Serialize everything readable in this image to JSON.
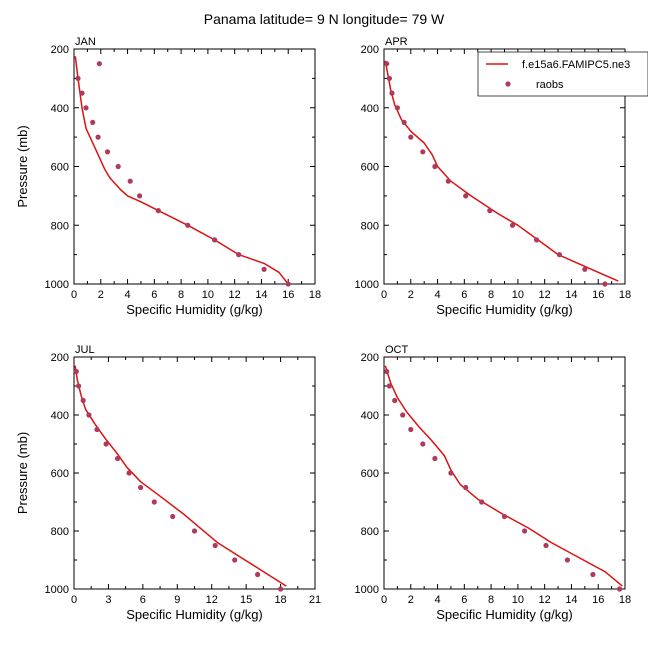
{
  "title": "Panama  latitude= 9 N longitude= 79 W",
  "colors": {
    "model": "#dd1111",
    "obs": "#b03a5b"
  },
  "legend": {
    "placement": "top-right",
    "model_label": "f.e15a6.FAMIPC5.ne3",
    "obs_label": "raobs"
  },
  "chart_data": [
    {
      "type": "line",
      "title": "JAN",
      "xlabel": "Specific Humidity (g/kg)",
      "ylabel": "Pressure (mb)",
      "xlim": [
        0,
        18
      ],
      "ylim": [
        1000,
        200
      ],
      "xticks": [
        "0",
        "2",
        "4",
        "6",
        "8",
        "10",
        "12",
        "14",
        "16",
        "18"
      ],
      "yticks": [
        "200",
        "400",
        "600",
        "800",
        "1000"
      ],
      "y_axis_reversed": true,
      "grid": false,
      "series": [
        {
          "name": "f.e15a6.FAMIPC5.ne3",
          "kind": "line",
          "x": [
            0.1,
            0.3,
            0.6,
            0.9,
            1.7,
            2.3,
            2.7,
            3.5,
            4.0,
            5.0,
            6.3,
            8.5,
            10.5,
            12.3,
            14.2,
            15.3,
            16.0
          ],
          "y": [
            225,
            300,
            400,
            470,
            550,
            610,
            640,
            680,
            700,
            720,
            750,
            800,
            850,
            900,
            930,
            960,
            1000
          ]
        },
        {
          "name": "raobs",
          "kind": "scatter",
          "x": [
            1.9,
            0.3,
            0.6,
            0.9,
            1.4,
            1.8,
            2.5,
            3.3,
            4.2,
            4.9,
            6.3,
            8.5,
            10.5,
            12.3,
            14.2,
            16.0
          ],
          "y": [
            250,
            300,
            350,
            400,
            450,
            500,
            550,
            600,
            650,
            700,
            750,
            800,
            850,
            900,
            950,
            1000
          ]
        }
      ]
    },
    {
      "type": "line",
      "title": "APR",
      "xlabel": "Specific Humidity (g/kg)",
      "ylabel": "Pressure (mb)",
      "xlim": [
        0,
        18
      ],
      "ylim": [
        1000,
        200
      ],
      "xticks": [
        "0",
        "2",
        "4",
        "6",
        "8",
        "10",
        "12",
        "14",
        "16",
        "18"
      ],
      "yticks": [
        "200",
        "400",
        "600",
        "800",
        "1000"
      ],
      "y_axis_reversed": true,
      "grid": false,
      "series": [
        {
          "name": "f.e15a6.FAMIPC5.ne3",
          "kind": "line",
          "x": [
            0.1,
            0.3,
            0.5,
            0.8,
            1.3,
            2.0,
            3.0,
            3.6,
            4.0,
            5.0,
            6.5,
            8.5,
            10.0,
            11.5,
            13.0,
            14.5,
            16.0,
            17.5
          ],
          "y": [
            240,
            290,
            340,
            390,
            440,
            480,
            520,
            560,
            600,
            650,
            700,
            760,
            800,
            850,
            900,
            930,
            960,
            990
          ]
        },
        {
          "name": "raobs",
          "kind": "scatter",
          "x": [
            0.2,
            0.4,
            0.6,
            1.0,
            1.5,
            2.0,
            2.9,
            3.8,
            4.8,
            6.1,
            7.9,
            9.6,
            11.4,
            13.1,
            15.0,
            16.5
          ],
          "y": [
            250,
            300,
            350,
            400,
            450,
            500,
            550,
            600,
            650,
            700,
            750,
            800,
            850,
            900,
            950,
            1000
          ]
        }
      ]
    },
    {
      "type": "line",
      "title": "JUL",
      "xlabel": "Specific Humidity (g/kg)",
      "ylabel": "Pressure (mb)",
      "xlim": [
        0,
        21
      ],
      "ylim": [
        1000,
        200
      ],
      "xticks": [
        "0",
        "3",
        "6",
        "9",
        "12",
        "15",
        "18",
        "21"
      ],
      "yticks": [
        "200",
        "400",
        "600",
        "800",
        "1000"
      ],
      "y_axis_reversed": true,
      "grid": false,
      "series": [
        {
          "name": "f.e15a6.FAMIPC5.ne3",
          "kind": "line",
          "x": [
            0.1,
            0.3,
            0.6,
            1.0,
            1.8,
            2.7,
            3.7,
            4.6,
            5.8,
            7.5,
            9.5,
            11.0,
            12.5,
            14.5,
            16.5,
            18.5
          ],
          "y": [
            230,
            280,
            330,
            380,
            430,
            480,
            530,
            580,
            630,
            680,
            740,
            790,
            840,
            890,
            940,
            990
          ]
        },
        {
          "name": "raobs",
          "kind": "scatter",
          "x": [
            0.2,
            0.4,
            0.8,
            1.3,
            2.0,
            2.8,
            3.8,
            4.8,
            5.8,
            7.0,
            8.6,
            10.5,
            12.3,
            14.0,
            16.0,
            18.0
          ],
          "y": [
            250,
            300,
            350,
            400,
            450,
            500,
            550,
            600,
            650,
            700,
            750,
            800,
            850,
            900,
            950,
            1000
          ]
        }
      ]
    },
    {
      "type": "line",
      "title": "OCT",
      "xlabel": "Specific Humidity (g/kg)",
      "ylabel": "Pressure (mb)",
      "xlim": [
        0,
        18
      ],
      "ylim": [
        1000,
        200
      ],
      "xticks": [
        "0",
        "2",
        "4",
        "6",
        "8",
        "10",
        "12",
        "14",
        "16",
        "18"
      ],
      "yticks": [
        "200",
        "400",
        "600",
        "800",
        "1000"
      ],
      "y_axis_reversed": true,
      "grid": false,
      "series": [
        {
          "name": "f.e15a6.FAMIPC5.ne3",
          "kind": "line",
          "x": [
            0.1,
            0.5,
            1.0,
            1.7,
            2.6,
            3.6,
            4.5,
            5.0,
            5.7,
            7.0,
            8.8,
            10.8,
            12.5,
            14.5,
            16.5,
            17.8
          ],
          "y": [
            230,
            290,
            340,
            390,
            440,
            490,
            540,
            590,
            640,
            690,
            740,
            790,
            840,
            890,
            940,
            990
          ]
        },
        {
          "name": "raobs",
          "kind": "scatter",
          "x": [
            0.2,
            0.4,
            0.8,
            1.4,
            2.0,
            2.9,
            3.8,
            5.0,
            6.1,
            7.3,
            9.0,
            10.5,
            12.1,
            13.7,
            15.6,
            17.6
          ],
          "y": [
            250,
            300,
            350,
            400,
            450,
            500,
            550,
            600,
            650,
            700,
            750,
            800,
            850,
            900,
            950,
            1000
          ]
        }
      ]
    }
  ]
}
